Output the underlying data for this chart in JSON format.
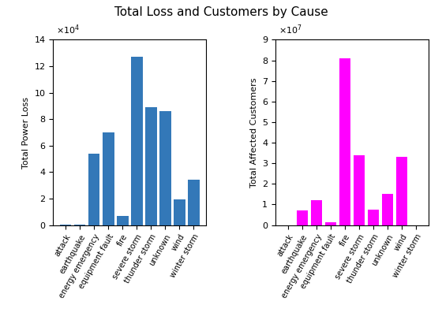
{
  "title": "Total Loss and Customers by Cause",
  "categories": [
    "attack",
    "earthquake",
    "energy emergency",
    "equipment fault",
    "fire",
    "severe storm",
    "thunder storm",
    "unknown",
    "wind",
    "winter storm"
  ],
  "power_loss_values": [
    500,
    100,
    54000,
    70000,
    7000,
    127000,
    89000,
    86000,
    19500,
    34500
  ],
  "customers_values": [
    0,
    7000000,
    12000000,
    1500000,
    81000000,
    34000000,
    7500000,
    15000000,
    33000000,
    0
  ],
  "bar_color_left": "#3378b8",
  "bar_color_right": "#ff00ff",
  "ylabel_left": "Total Power Loss",
  "ylabel_right": "Total Affected Customers",
  "ylim_left": [
    0,
    140000
  ],
  "ylim_right": [
    0,
    90000000
  ],
  "ytick_labels_left": [
    "0",
    "2",
    "4",
    "6",
    "8",
    "10",
    "12",
    "14"
  ],
  "ytick_labels_right": [
    "0",
    "1",
    "2",
    "3",
    "4",
    "5",
    "6",
    "7",
    "8",
    "9"
  ],
  "bg_color": "#ffffff",
  "title_fontsize": 11,
  "label_fontsize": 8,
  "tick_fontsize": 8
}
